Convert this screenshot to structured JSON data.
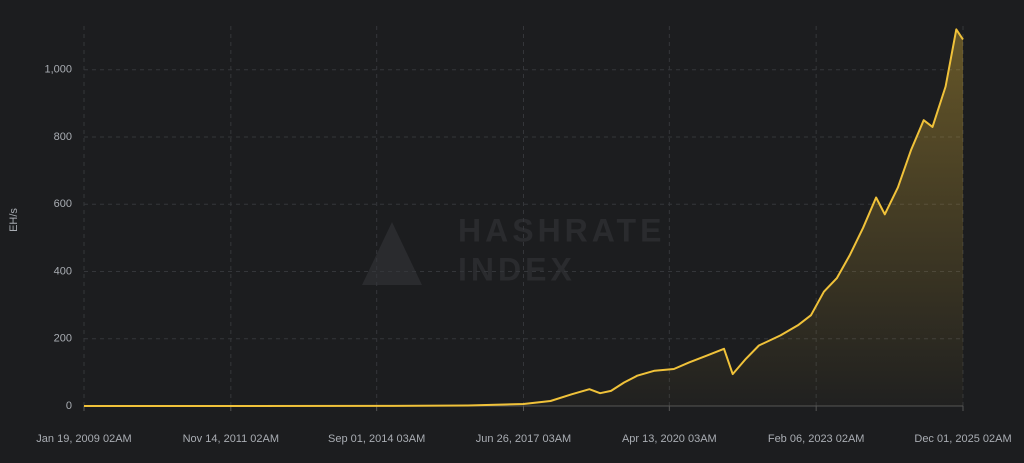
{
  "chart_data": {
    "type": "area",
    "y_label": "EH/s",
    "watermark": [
      "HASHRATE",
      "INDEX"
    ],
    "color": "#f0c23a",
    "x": [
      "2009-01-19",
      "2012-01-01",
      "2015-01-01",
      "2016-06-01",
      "2017-06-26",
      "2018-01-01",
      "2018-06-01",
      "2018-10-01",
      "2018-12-15",
      "2019-03-01",
      "2019-06-01",
      "2019-09-01",
      "2020-01-01",
      "2020-05-15",
      "2020-09-01",
      "2021-01-01",
      "2021-05-01",
      "2021-07-01",
      "2021-10-01",
      "2022-01-01",
      "2022-06-01",
      "2022-10-01",
      "2023-01-01",
      "2023-04-01",
      "2023-07-01",
      "2023-10-01",
      "2024-01-01",
      "2024-04-01",
      "2024-06-01",
      "2024-09-01",
      "2024-12-01",
      "2025-03-01",
      "2025-05-01",
      "2025-08-01",
      "2025-10-15",
      "2025-12-01"
    ],
    "values": [
      0,
      0,
      0.3,
      1.5,
      6,
      15,
      35,
      50,
      38,
      45,
      70,
      90,
      105,
      110,
      130,
      150,
      170,
      95,
      140,
      180,
      210,
      240,
      270,
      340,
      380,
      450,
      530,
      620,
      570,
      650,
      760,
      850,
      830,
      950,
      1120,
      1090
    ],
    "ylim": [
      0,
      1130
    ],
    "yticks": [
      0,
      200,
      400,
      600,
      800,
      {
        "value": 1000,
        "label": "1,000"
      }
    ],
    "xlim": [
      "2009-01-19T02:00",
      "2025-12-01T02:00"
    ],
    "xticks": [
      {
        "value": "2009-01-19T02:00",
        "label": "Jan 19, 2009 02AM"
      },
      {
        "value": "2011-11-14T02:00",
        "label": "Nov 14, 2011 02AM"
      },
      {
        "value": "2014-09-01T03:00",
        "label": "Sep 01, 2014 03AM"
      },
      {
        "value": "2017-06-26T03:00",
        "label": "Jun 26, 2017 03AM"
      },
      {
        "value": "2020-04-13T03:00",
        "label": "Apr 13, 2020 03AM"
      },
      {
        "value": "2023-02-06T02:00",
        "label": "Feb 06, 2023 02AM"
      },
      {
        "value": "2025-12-01T02:00",
        "label": "Dec 01, 2025 02AM"
      }
    ],
    "grid": true
  }
}
